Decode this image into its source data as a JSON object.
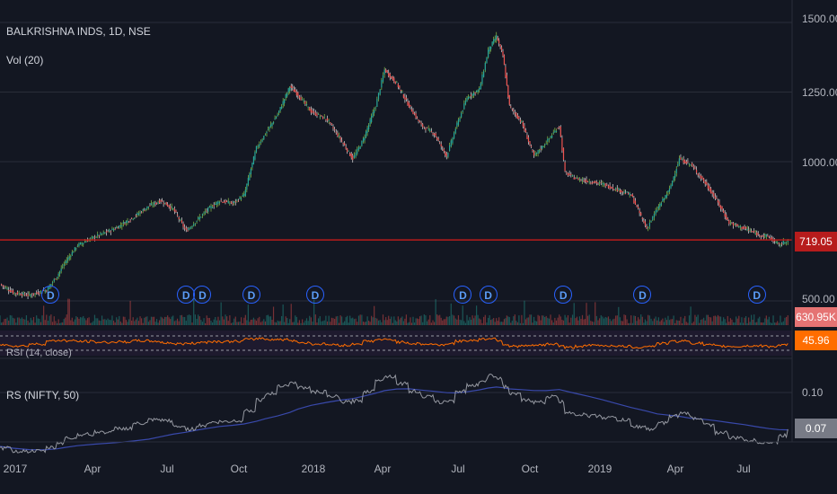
{
  "header": {
    "symbol": "BALKRISHNA INDS, 1D, NSE",
    "volume_label": "Vol (20)",
    "rsi_label": "RSI (14, close)",
    "rs_label": "RS (NIFTY, 50)"
  },
  "price_axis": {
    "ticks": [
      "1500.00",
      "1250.00",
      "1000.00",
      "500.00"
    ],
    "last_price": "719.05",
    "last_volume": "630.95K",
    "last_rsi": "45.96"
  },
  "rs_axis": {
    "ticks": [
      "0.10"
    ],
    "last_value": "0.07"
  },
  "dividend_marker_label": "D",
  "dividend_markers": [
    "2017-02-20",
    "2017-08-05",
    "2017-08-25",
    "2017-10-24",
    "2018-01-10",
    "2018-07-10",
    "2018-08-10",
    "2018-11-10",
    "2019-02-15",
    "2019-07-05"
  ],
  "x_axis_ticks": [
    "2017",
    "Apr",
    "Jul",
    "Oct",
    "2018",
    "Apr",
    "Jul",
    "Oct",
    "2019",
    "Apr",
    "Jul"
  ],
  "colors": {
    "background": "#131722",
    "up": "#26a69a",
    "down": "#ef5350",
    "price_line": "#b71c1c",
    "rsi_line": "#ff6d00",
    "rs_line": "#9598a1",
    "rs_ma": "#3949ab",
    "dividend": "#2962ff"
  },
  "chart_data": {
    "type": "line",
    "title": "BALKRISHNA INDS, 1D, NSE",
    "x_range": [
      "2016-12-20",
      "2019-08-15"
    ],
    "ylim": [
      450,
      1550
    ],
    "price_series": {
      "name": "BALKRISHNA INDS",
      "x": [
        "2016-12-20",
        "2017-01-05",
        "2017-01-25",
        "2017-02-15",
        "2017-02-28",
        "2017-03-10",
        "2017-03-25",
        "2017-04-15",
        "2017-05-10",
        "2017-06-01",
        "2017-06-20",
        "2017-07-05",
        "2017-07-20",
        "2017-08-05",
        "2017-08-18",
        "2017-09-01",
        "2017-09-15",
        "2017-10-01",
        "2017-10-15",
        "2017-10-30",
        "2017-11-10",
        "2017-11-25",
        "2017-12-10",
        "2017-12-20",
        "2018-01-05",
        "2018-01-25",
        "2018-02-10",
        "2018-02-25",
        "2018-03-10",
        "2018-03-25",
        "2018-04-05",
        "2018-04-20",
        "2018-05-05",
        "2018-05-20",
        "2018-06-05",
        "2018-06-20",
        "2018-07-01",
        "2018-07-15",
        "2018-07-30",
        "2018-08-10",
        "2018-08-20",
        "2018-08-28",
        "2018-09-05",
        "2018-09-20",
        "2018-10-05",
        "2018-10-20",
        "2018-11-05",
        "2018-11-12",
        "2018-11-25",
        "2018-12-10",
        "2018-12-28",
        "2019-01-15",
        "2019-02-01",
        "2019-02-20",
        "2019-03-05",
        "2019-03-20",
        "2019-04-01",
        "2019-04-15",
        "2019-05-01",
        "2019-05-15",
        "2019-06-01",
        "2019-06-20",
        "2019-07-05",
        "2019-07-20",
        "2019-08-01",
        "2019-08-12"
      ],
      "values": [
        560,
        530,
        520,
        540,
        590,
        640,
        700,
        730,
        760,
        800,
        840,
        860,
        830,
        750,
        790,
        830,
        860,
        850,
        880,
        1050,
        1100,
        1170,
        1270,
        1240,
        1180,
        1150,
        1080,
        1010,
        1080,
        1200,
        1330,
        1280,
        1200,
        1130,
        1100,
        1020,
        1120,
        1230,
        1260,
        1400,
        1450,
        1380,
        1200,
        1140,
        1020,
        1070,
        1130,
        960,
        940,
        930,
        920,
        900,
        880,
        760,
        830,
        900,
        1010,
        990,
        930,
        870,
        780,
        760,
        740,
        730,
        700,
        719
      ]
    },
    "volume_series": {
      "name": "Vol (20)",
      "last": 630950
    },
    "rsi_series": {
      "name": "RSI (14, close)",
      "ylim": [
        0,
        100
      ],
      "levels": [
        70,
        30
      ],
      "values": [
        45,
        40,
        38,
        55,
        62,
        60,
        58,
        55,
        52,
        58,
        60,
        55,
        48,
        46,
        52,
        55,
        58,
        54,
        60,
        70,
        68,
        62,
        66,
        55,
        48,
        45,
        42,
        40,
        55,
        60,
        68,
        58,
        50,
        46,
        45,
        42,
        55,
        60,
        62,
        70,
        68,
        55,
        35,
        40,
        38,
        45,
        48,
        30,
        35,
        40,
        42,
        38,
        36,
        32,
        45,
        52,
        62,
        55,
        45,
        40,
        35,
        38,
        40,
        38,
        36,
        46
      ]
    },
    "rs_series": {
      "name": "RS (NIFTY, 50)",
      "ylim": [
        0.04,
        0.14
      ],
      "values": [
        0.055,
        0.052,
        0.05,
        0.052,
        0.056,
        0.06,
        0.064,
        0.066,
        0.068,
        0.072,
        0.076,
        0.078,
        0.075,
        0.068,
        0.071,
        0.074,
        0.076,
        0.075,
        0.078,
        0.092,
        0.096,
        0.102,
        0.11,
        0.106,
        0.102,
        0.099,
        0.094,
        0.09,
        0.096,
        0.106,
        0.116,
        0.111,
        0.104,
        0.098,
        0.095,
        0.089,
        0.097,
        0.105,
        0.107,
        0.113,
        0.115,
        0.11,
        0.1,
        0.097,
        0.09,
        0.094,
        0.099,
        0.085,
        0.082,
        0.081,
        0.08,
        0.078,
        0.076,
        0.067,
        0.072,
        0.077,
        0.084,
        0.081,
        0.076,
        0.07,
        0.063,
        0.061,
        0.059,
        0.058,
        0.058,
        0.07
      ]
    }
  }
}
